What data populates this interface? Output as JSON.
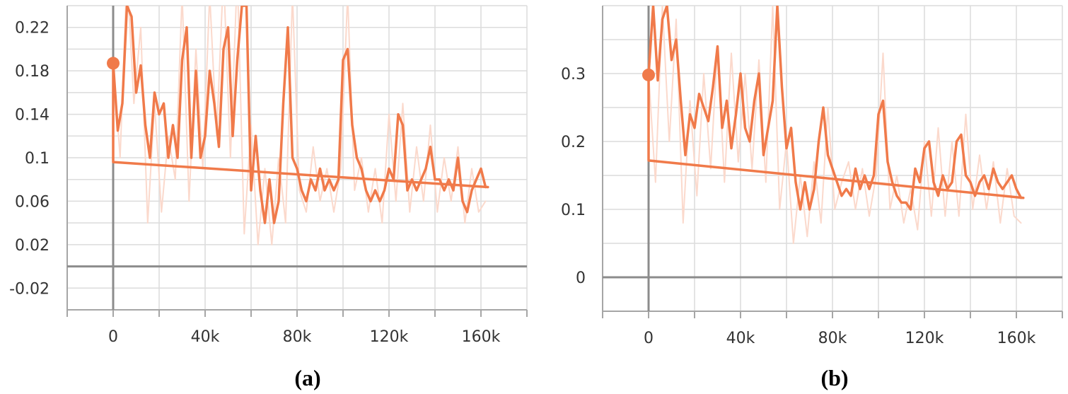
{
  "colors": {
    "line": "#f07a4a",
    "raw_line": "#fbd9cc",
    "grid": "#dcdcdc",
    "axis": "#a6a6a6",
    "zero_axis": "#8c8c8c"
  },
  "chart_data": [
    {
      "type": "line",
      "caption": "(a)",
      "grid": true,
      "xlim": [
        -20000,
        180000
      ],
      "ylim": [
        -0.04,
        0.24
      ],
      "xticks": [
        0,
        40000,
        80000,
        120000,
        160000
      ],
      "xtick_labels": [
        "0",
        "40k",
        "80k",
        "120k",
        "160k"
      ],
      "yticks": [
        0.22,
        0.18,
        0.14,
        0.1,
        0.06,
        0.02,
        -0.02
      ],
      "ytick_labels": [
        "0.22",
        "0.18",
        "0.14",
        "0.1",
        "0.06",
        "0.02",
        "-0.02"
      ],
      "series": [
        {
          "style": "raw",
          "x": [
            0,
            3000,
            6000,
            9000,
            12000,
            15000,
            18000,
            21000,
            24000,
            27000,
            30000,
            33000,
            36000,
            39000,
            42000,
            45000,
            48000,
            51000,
            54000,
            57000,
            60000,
            63000,
            66000,
            69000,
            72000,
            75000,
            78000,
            81000,
            84000,
            87000,
            90000,
            93000,
            96000,
            99000,
            102000,
            105000,
            108000,
            111000,
            114000,
            117000,
            120000,
            123000,
            126000,
            129000,
            132000,
            135000,
            138000,
            141000,
            144000,
            147000,
            150000,
            153000,
            156000,
            159000,
            162000
          ],
          "y": [
            0.19,
            0.1,
            0.27,
            0.15,
            0.22,
            0.04,
            0.15,
            0.05,
            0.12,
            0.08,
            0.25,
            0.06,
            0.2,
            0.09,
            0.25,
            0.12,
            0.27,
            0.1,
            0.27,
            0.03,
            0.13,
            0.02,
            0.09,
            0.02,
            0.1,
            0.04,
            0.25,
            0.07,
            0.05,
            0.11,
            0.06,
            0.09,
            0.05,
            0.09,
            0.25,
            0.07,
            0.1,
            0.05,
            0.09,
            0.04,
            0.14,
            0.06,
            0.15,
            0.05,
            0.11,
            0.06,
            0.13,
            0.05,
            0.1,
            0.06,
            0.11,
            0.04,
            0.09,
            0.05,
            0.06
          ]
        },
        {
          "style": "smoothed",
          "x": [
            0,
            2000,
            4000,
            6000,
            8000,
            10000,
            12000,
            14000,
            16000,
            18000,
            20000,
            22000,
            24000,
            26000,
            28000,
            30000,
            32000,
            34000,
            36000,
            38000,
            40000,
            42000,
            44000,
            46000,
            48000,
            50000,
            52000,
            54000,
            56000,
            58000,
            60000,
            62000,
            64000,
            66000,
            68000,
            70000,
            72000,
            74000,
            76000,
            78000,
            80000,
            82000,
            84000,
            86000,
            88000,
            90000,
            92000,
            94000,
            96000,
            98000,
            100000,
            102000,
            104000,
            106000,
            108000,
            110000,
            112000,
            114000,
            116000,
            118000,
            120000,
            122000,
            124000,
            126000,
            128000,
            130000,
            132000,
            134000,
            136000,
            138000,
            140000,
            142000,
            144000,
            146000,
            148000,
            150000,
            152000,
            154000,
            156000,
            158000,
            160000,
            162000
          ],
          "y": [
            0.187,
            0.125,
            0.15,
            0.24,
            0.23,
            0.16,
            0.185,
            0.13,
            0.1,
            0.16,
            0.14,
            0.15,
            0.1,
            0.13,
            0.1,
            0.19,
            0.22,
            0.1,
            0.18,
            0.1,
            0.12,
            0.18,
            0.15,
            0.11,
            0.2,
            0.22,
            0.12,
            0.19,
            0.24,
            0.24,
            0.07,
            0.12,
            0.07,
            0.04,
            0.08,
            0.04,
            0.06,
            0.15,
            0.22,
            0.1,
            0.09,
            0.07,
            0.06,
            0.08,
            0.07,
            0.09,
            0.07,
            0.08,
            0.07,
            0.08,
            0.19,
            0.2,
            0.13,
            0.1,
            0.09,
            0.07,
            0.06,
            0.07,
            0.06,
            0.07,
            0.09,
            0.08,
            0.14,
            0.13,
            0.07,
            0.08,
            0.07,
            0.08,
            0.09,
            0.11,
            0.08,
            0.08,
            0.07,
            0.08,
            0.07,
            0.1,
            0.06,
            0.05,
            0.07,
            0.08,
            0.09,
            0.073
          ]
        },
        {
          "style": "smoothed",
          "x": [
            0,
            0,
            163000
          ],
          "y": [
            0.187,
            0.096,
            0.073
          ]
        }
      ]
    },
    {
      "type": "line",
      "caption": "(b)",
      "grid": true,
      "xlim": [
        -20000,
        180000
      ],
      "ylim": [
        -0.05,
        0.4
      ],
      "xticks": [
        0,
        40000,
        80000,
        120000,
        160000
      ],
      "xtick_labels": [
        "0",
        "40k",
        "80k",
        "120k",
        "160k"
      ],
      "yticks": [
        0.3,
        0.2,
        0.1,
        0
      ],
      "ytick_labels": [
        "0.3",
        "0.2",
        "0.1",
        "0"
      ],
      "series": [
        {
          "style": "raw",
          "x": [
            0,
            3000,
            6000,
            9000,
            12000,
            15000,
            18000,
            21000,
            24000,
            27000,
            30000,
            33000,
            36000,
            39000,
            42000,
            45000,
            48000,
            51000,
            54000,
            57000,
            60000,
            63000,
            66000,
            69000,
            72000,
            75000,
            78000,
            81000,
            84000,
            87000,
            90000,
            93000,
            96000,
            99000,
            102000,
            105000,
            108000,
            111000,
            114000,
            117000,
            120000,
            123000,
            126000,
            129000,
            132000,
            135000,
            138000,
            141000,
            144000,
            147000,
            150000,
            153000,
            156000,
            159000,
            162000
          ],
          "y": [
            0.3,
            0.14,
            0.4,
            0.2,
            0.38,
            0.08,
            0.26,
            0.12,
            0.3,
            0.16,
            0.34,
            0.14,
            0.33,
            0.17,
            0.3,
            0.16,
            0.32,
            0.14,
            0.4,
            0.1,
            0.2,
            0.05,
            0.15,
            0.06,
            0.17,
            0.08,
            0.25,
            0.1,
            0.14,
            0.17,
            0.1,
            0.16,
            0.09,
            0.15,
            0.33,
            0.1,
            0.15,
            0.08,
            0.13,
            0.07,
            0.2,
            0.09,
            0.22,
            0.09,
            0.2,
            0.09,
            0.24,
            0.1,
            0.18,
            0.1,
            0.17,
            0.08,
            0.16,
            0.09,
            0.08
          ]
        },
        {
          "style": "smoothed",
          "x": [
            0,
            2000,
            4000,
            6000,
            8000,
            10000,
            12000,
            14000,
            16000,
            18000,
            20000,
            22000,
            24000,
            26000,
            28000,
            30000,
            32000,
            34000,
            36000,
            38000,
            40000,
            42000,
            44000,
            46000,
            48000,
            50000,
            52000,
            54000,
            56000,
            58000,
            60000,
            62000,
            64000,
            66000,
            68000,
            70000,
            72000,
            74000,
            76000,
            78000,
            80000,
            82000,
            84000,
            86000,
            88000,
            90000,
            92000,
            94000,
            96000,
            98000,
            100000,
            102000,
            104000,
            106000,
            108000,
            110000,
            112000,
            114000,
            116000,
            118000,
            120000,
            122000,
            124000,
            126000,
            128000,
            130000,
            132000,
            134000,
            136000,
            138000,
            140000,
            142000,
            144000,
            146000,
            148000,
            150000,
            152000,
            154000,
            156000,
            158000,
            160000,
            162000
          ],
          "y": [
            0.298,
            0.4,
            0.29,
            0.38,
            0.4,
            0.32,
            0.35,
            0.26,
            0.18,
            0.24,
            0.22,
            0.27,
            0.25,
            0.23,
            0.28,
            0.34,
            0.22,
            0.26,
            0.19,
            0.24,
            0.3,
            0.22,
            0.2,
            0.26,
            0.3,
            0.18,
            0.22,
            0.26,
            0.4,
            0.28,
            0.19,
            0.22,
            0.14,
            0.1,
            0.14,
            0.1,
            0.13,
            0.2,
            0.25,
            0.18,
            0.16,
            0.14,
            0.12,
            0.13,
            0.12,
            0.16,
            0.13,
            0.15,
            0.13,
            0.15,
            0.24,
            0.26,
            0.17,
            0.14,
            0.12,
            0.11,
            0.11,
            0.1,
            0.16,
            0.14,
            0.19,
            0.2,
            0.14,
            0.12,
            0.15,
            0.13,
            0.14,
            0.2,
            0.21,
            0.15,
            0.14,
            0.12,
            0.14,
            0.15,
            0.13,
            0.16,
            0.14,
            0.13,
            0.14,
            0.15,
            0.13,
            0.117
          ]
        },
        {
          "style": "smoothed",
          "x": [
            0,
            0,
            163000
          ],
          "y": [
            0.298,
            0.172,
            0.117
          ]
        }
      ]
    }
  ]
}
